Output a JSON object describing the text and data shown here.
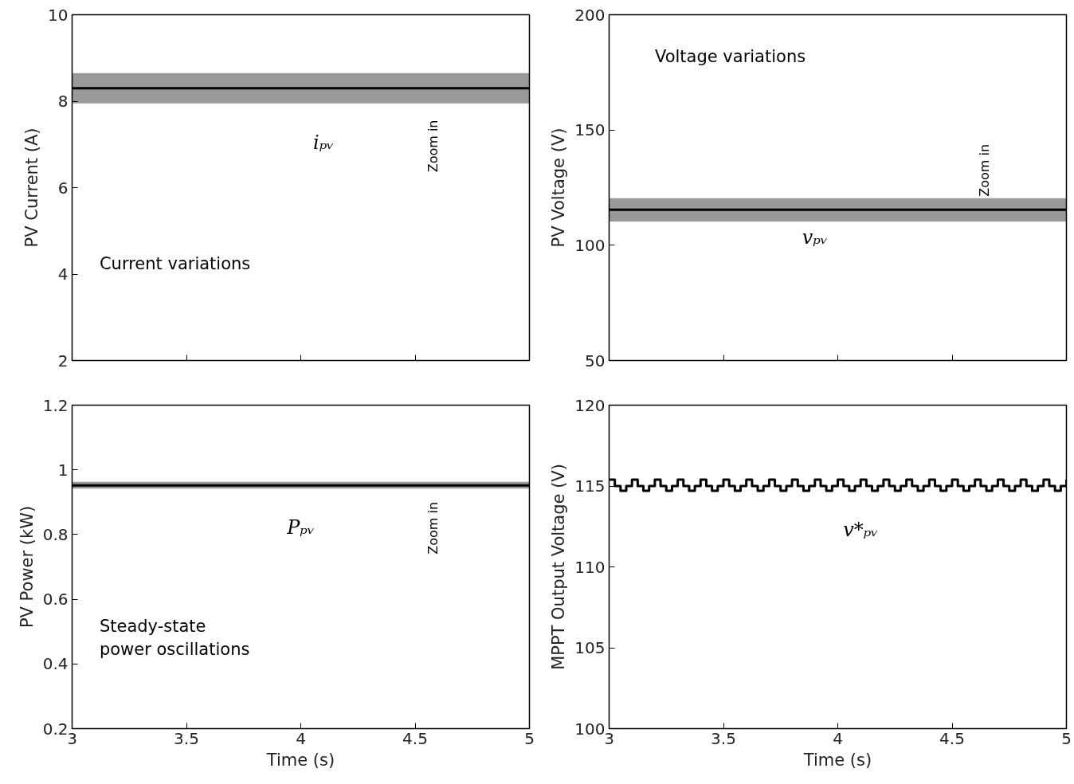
{
  "chart_data": [
    {
      "type": "line",
      "ylabel": "PV Current (A)",
      "xlim": [
        3,
        5
      ],
      "xticks": [
        3,
        3.5,
        4,
        4.5,
        5
      ],
      "ylim": [
        2,
        10
      ],
      "yticks": [
        2,
        4,
        6,
        8,
        10
      ],
      "tick_labels": "y",
      "series": [
        {
          "color": "#000000",
          "x": [
            3,
            5
          ],
          "values": [
            8.3,
            8.3
          ],
          "lower": [
            7.95,
            7.95
          ],
          "upper": [
            8.65,
            8.65
          ]
        }
      ],
      "annotations": [
        {
          "text": "iₚᵥ",
          "x": 4.1,
          "y": 7.95
        },
        "Zoom in",
        "Current variations"
      ]
    },
    {
      "type": "line",
      "ylabel": "PV Voltage (V)",
      "xlim": [
        3,
        5
      ],
      "xticks": [
        3,
        3.5,
        4,
        4.5,
        5
      ],
      "ylim": [
        50,
        200
      ],
      "yticks": [
        50,
        100,
        150,
        200
      ],
      "tick_labels": "y",
      "series": [
        {
          "color": "#000000",
          "x": [
            3,
            5
          ],
          "values": [
            115.4,
            115.4
          ],
          "lower": [
            110.3,
            110.3
          ],
          "upper": [
            120.4,
            120.4
          ]
        }
      ],
      "annotations": [
        {
          "text": "vₚᵥ",
          "x": 3.9,
          "y": 120.4
        },
        "Zoom in",
        "Voltage variations"
      ]
    },
    {
      "type": "line",
      "xlabel": "Time (s)",
      "ylabel": "PV Power (kW)",
      "xlim": [
        3,
        5
      ],
      "xticks": [
        3,
        3.5,
        4,
        4.5,
        5
      ],
      "ylim": [
        0.2,
        1.2
      ],
      "yticks": [
        0.2,
        0.4,
        0.6,
        0.8,
        1,
        1.2
      ],
      "series": [
        {
          "color": "#000000",
          "x": [
            3,
            5
          ],
          "values": [
            0.952,
            0.952
          ],
          "lower": [
            0.942,
            0.942
          ],
          "upper": [
            0.963,
            0.963
          ]
        }
      ],
      "annotations": [
        {
          "text": "Pₚᵥ",
          "x": 4.0,
          "y": 0.942
        },
        "Zoom in",
        "Steady-state\npower oscillations"
      ]
    },
    {
      "type": "step",
      "xlabel": "Time (s)",
      "ylabel": "MPPT Output Voltage (V)",
      "xlim": [
        3,
        5
      ],
      "xticks": [
        3,
        3.5,
        4,
        4.5,
        5
      ],
      "ylim": [
        100,
        120
      ],
      "yticks": [
        100,
        105,
        110,
        115,
        120
      ],
      "series": [
        {
          "color": "#000000",
          "x": [
            3,
            3.025,
            3.05,
            3.075,
            3.1,
            3.125,
            3.15,
            3.175,
            3.2,
            3.225,
            3.25,
            3.275,
            3.3,
            3.325,
            3.35,
            3.375,
            3.4,
            3.425,
            3.45,
            3.475,
            3.5,
            3.525,
            3.55,
            3.575,
            3.6,
            3.625,
            3.65,
            3.675,
            3.7,
            3.725,
            3.75,
            3.775,
            3.8,
            3.825,
            3.85,
            3.875,
            3.9,
            3.925,
            3.95,
            3.975,
            4,
            4.025,
            4.05,
            4.075,
            4.1,
            4.125,
            4.15,
            4.175,
            4.2,
            4.225,
            4.25,
            4.275,
            4.3,
            4.325,
            4.35,
            4.375,
            4.4,
            4.425,
            4.45,
            4.475,
            4.5,
            4.525,
            4.55,
            4.575,
            4.6,
            4.625,
            4.65,
            4.675,
            4.7,
            4.725,
            4.75,
            4.775,
            4.8,
            4.825,
            4.85,
            4.875,
            4.9,
            4.925,
            4.95,
            4.975,
            5
          ],
          "values": [
            115.4,
            115,
            114.7,
            115,
            115.4,
            115,
            114.7,
            115,
            115.4,
            115,
            114.7,
            115,
            115.4,
            115,
            114.7,
            115,
            115.4,
            115,
            114.7,
            115,
            115.4,
            115,
            114.7,
            115,
            115.4,
            115,
            114.7,
            115,
            115.4,
            115,
            114.7,
            115,
            115.4,
            115,
            114.7,
            115,
            115.4,
            115,
            114.7,
            115,
            115.4,
            115,
            114.7,
            115,
            115.4,
            115,
            114.7,
            115,
            115.4,
            115,
            114.7,
            115,
            115.4,
            115,
            114.7,
            115,
            115.4,
            115,
            114.7,
            115,
            115.4,
            115,
            114.7,
            115,
            115.4,
            115,
            114.7,
            115,
            115.4,
            115,
            114.7,
            115,
            115.4,
            115,
            114.7,
            115,
            115.4,
            115,
            114.7,
            115,
            115.4
          ]
        }
      ],
      "annotations": [
        {
          "text": "v*ₚᵥ",
          "x": 4.1,
          "y": 114.7
        }
      ]
    }
  ]
}
